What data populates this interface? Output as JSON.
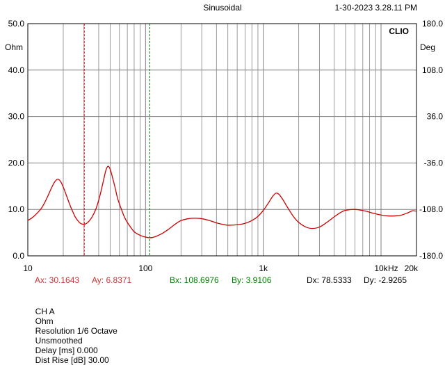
{
  "header": {
    "mode": "Sinusoidal",
    "timestamp": "1-30-2023 3.28.11 PM",
    "brand": "CLIO"
  },
  "colors": {
    "curve": "#cc0000",
    "cursor_a": "#cc0000",
    "cursor_b": "#008000",
    "grid": "#808080",
    "readout_a": "#cc3333",
    "readout_b": "#008000"
  },
  "cursors": {
    "a": {
      "x": 30.1643,
      "y": 6.8371,
      "x_label": "Ax: 30.1643",
      "y_label": "Ay: 6.8371"
    },
    "b": {
      "x": 108.6976,
      "y": 3.9106,
      "x_label": "Bx: 108.6976",
      "y_label": "By: 3.9106"
    },
    "dx_label": "Dx: 78.5333",
    "dy_label": "Dy: -2.9265"
  },
  "status_bar": {
    "channel": "CH A",
    "unit": "Ohm",
    "resolution": "Resolution 1/6 Octave",
    "smoothing": "Unsmoothed",
    "delay": "Delay [ms] 0.000",
    "dist_rise": "Dist Rise [dB] 30.00"
  },
  "chart_data": {
    "type": "line",
    "title": "",
    "x_scale": "log",
    "xlim": [
      10,
      20000
    ],
    "x_tick_labels": [
      {
        "value": 10,
        "label": "10"
      },
      {
        "value": 100,
        "label": "100"
      },
      {
        "value": 1000,
        "label": "1k"
      },
      {
        "value": 10000,
        "label": "10k"
      },
      {
        "value": 20000,
        "label": "20k"
      }
    ],
    "x_unit": "Hz",
    "ylabel_left": "Ohm",
    "ylim_left": [
      0,
      50
    ],
    "y_ticks_left": [
      "0.0",
      "10.0",
      "20.0",
      "30.0",
      "40.0",
      "50.0"
    ],
    "ylabel_right": "Deg",
    "ylim_right": [
      -180,
      180
    ],
    "y_ticks_right": [
      "-180.0",
      "-108.0",
      "-36.0",
      "36.0",
      "108.0",
      "180.0"
    ],
    "grid": true,
    "series": [
      {
        "points": [
          [
            10,
            7.6
          ],
          [
            11,
            8.3
          ],
          [
            12,
            9.2
          ],
          [
            13,
            10.2
          ],
          [
            14,
            11.6
          ],
          [
            15,
            13.2
          ],
          [
            16,
            14.8
          ],
          [
            17,
            16.0
          ],
          [
            18,
            16.5
          ],
          [
            19,
            16.0
          ],
          [
            20,
            14.8
          ],
          [
            21,
            13.4
          ],
          [
            22,
            12.0
          ],
          [
            23,
            10.7
          ],
          [
            24,
            9.6
          ],
          [
            25,
            8.6
          ],
          [
            26,
            7.9
          ],
          [
            28,
            7.0
          ],
          [
            30,
            6.8
          ],
          [
            32,
            7.1
          ],
          [
            35,
            8.3
          ],
          [
            38,
            10.2
          ],
          [
            41,
            13.0
          ],
          [
            44,
            16.3
          ],
          [
            46,
            18.4
          ],
          [
            48,
            19.3
          ],
          [
            50,
            18.7
          ],
          [
            52,
            17.2
          ],
          [
            55,
            14.8
          ],
          [
            58,
            12.3
          ],
          [
            62,
            10.2
          ],
          [
            66,
            8.4
          ],
          [
            70,
            7.2
          ],
          [
            75,
            6.1
          ],
          [
            80,
            5.2
          ],
          [
            87,
            4.6
          ],
          [
            95,
            4.2
          ],
          [
            108.7,
            3.9
          ],
          [
            120,
            4.1
          ],
          [
            140,
            4.9
          ],
          [
            160,
            5.9
          ],
          [
            180,
            6.9
          ],
          [
            200,
            7.6
          ],
          [
            230,
            8.0
          ],
          [
            260,
            8.1
          ],
          [
            300,
            8.0
          ],
          [
            350,
            7.6
          ],
          [
            400,
            7.1
          ],
          [
            450,
            6.8
          ],
          [
            500,
            6.6
          ],
          [
            600,
            6.7
          ],
          [
            700,
            7.0
          ],
          [
            800,
            7.6
          ],
          [
            900,
            8.5
          ],
          [
            1000,
            9.8
          ],
          [
            1100,
            11.3
          ],
          [
            1200,
            12.8
          ],
          [
            1280,
            13.5
          ],
          [
            1350,
            13.3
          ],
          [
            1450,
            12.3
          ],
          [
            1600,
            10.5
          ],
          [
            1800,
            8.5
          ],
          [
            2000,
            7.2
          ],
          [
            2300,
            6.2
          ],
          [
            2600,
            5.9
          ],
          [
            3000,
            6.2
          ],
          [
            3500,
            7.3
          ],
          [
            4000,
            8.4
          ],
          [
            4500,
            9.3
          ],
          [
            5000,
            9.8
          ],
          [
            5800,
            10.0
          ],
          [
            6500,
            9.9
          ],
          [
            7500,
            9.6
          ],
          [
            8500,
            9.2
          ],
          [
            10000,
            8.8
          ],
          [
            11500,
            8.6
          ],
          [
            13000,
            8.6
          ],
          [
            15000,
            8.8
          ],
          [
            17000,
            9.3
          ],
          [
            18500,
            9.7
          ],
          [
            20000,
            9.6
          ]
        ]
      }
    ]
  }
}
